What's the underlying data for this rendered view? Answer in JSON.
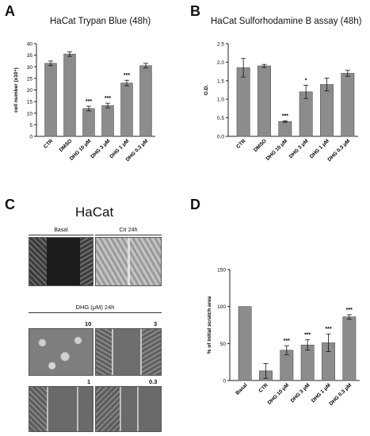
{
  "panels": {
    "a": {
      "letter": "A",
      "title": "HaCat Trypan Blue (48h)"
    },
    "b": {
      "letter": "B",
      "title": "HaCat Sulforhodamine B assay (48h)"
    },
    "c": {
      "letter": "C",
      "title": "HaCat",
      "basal": "Basal",
      "ctr24": "Ctr 24h",
      "dhg24": "DHG (μM) 24h",
      "concs": [
        "10",
        "3",
        "1",
        "0.3"
      ]
    },
    "d": {
      "letter": "D"
    }
  },
  "colors": {
    "bar": "#8c8c8c",
    "axis": "#222222"
  },
  "chart_data": [
    {
      "id": "a",
      "type": "bar",
      "title": "HaCat Trypan Blue (48h)",
      "ylabel": "cell number (x10⁴)",
      "ylim": [
        0,
        40
      ],
      "yticks": [
        0,
        5,
        10,
        15,
        20,
        25,
        30,
        35,
        40
      ],
      "categories": [
        "CTR",
        "DMSO",
        "DHG 10 μM",
        "DHG 3 μM",
        "DHG 1 μM",
        "DHG 0.3 μM"
      ],
      "values": [
        31.5,
        35.5,
        12,
        13.3,
        23,
        30.5
      ],
      "errors": [
        1.0,
        1.0,
        1.0,
        1.0,
        1.2,
        1.0
      ],
      "significance": [
        "",
        "",
        "***",
        "***",
        "***",
        ""
      ]
    },
    {
      "id": "b",
      "type": "bar",
      "title": "HaCat Sulforhodamine B assay (48h)",
      "ylabel": "O.D.",
      "ylim": [
        0,
        2.5
      ],
      "yticks": [
        0.0,
        0.5,
        1.0,
        1.5,
        2.0,
        2.5
      ],
      "categories": [
        "CTR",
        "DMSO",
        "DHG 10 μM",
        "DHG 3 μM",
        "DHG 1 μM",
        "DHG 0.3 μM"
      ],
      "values": [
        1.85,
        1.9,
        0.4,
        1.2,
        1.4,
        1.7
      ],
      "errors": [
        0.25,
        0.04,
        0.02,
        0.18,
        0.17,
        0.08
      ],
      "significance": [
        "",
        "",
        "***",
        "*",
        "",
        ""
      ]
    },
    {
      "id": "d",
      "type": "bar",
      "ylabel": "% of initial scratch area",
      "ylim": [
        0,
        150
      ],
      "yticks": [
        0,
        50,
        100,
        150
      ],
      "categories": [
        "Basal",
        "CTR",
        "DHG 10 μM",
        "DHG 3 μM",
        "DHG 1 μM",
        "DHG 0.3 μM"
      ],
      "values": [
        100,
        13,
        41,
        48,
        51,
        86
      ],
      "errors": [
        0,
        10,
        6,
        7,
        12,
        3
      ],
      "significance": [
        "",
        "",
        "***",
        "***",
        "***",
        "***"
      ]
    }
  ]
}
